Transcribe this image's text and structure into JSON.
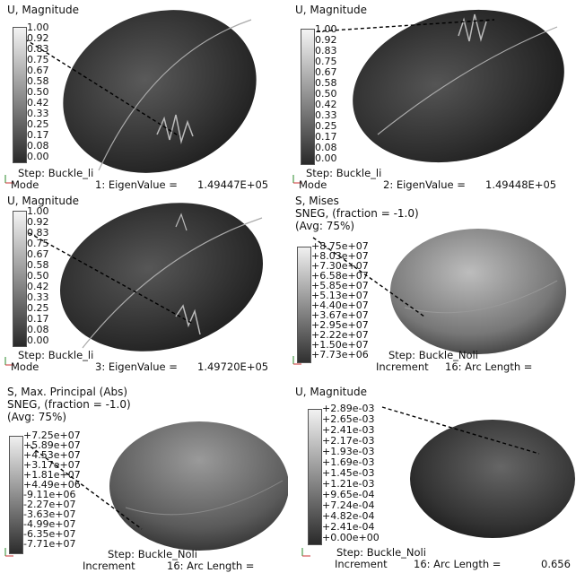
{
  "panels": [
    {
      "header": [
        "U, Magnitude"
      ],
      "ticks": [
        "1.00",
        "0.92",
        "0.83",
        "0.75",
        "0.67",
        "0.58",
        "0.50",
        "0.42",
        "0.33",
        "0.25",
        "0.17",
        "0.08",
        "0.00"
      ],
      "step": "Step: Buckle_li",
      "mode_label": "Mode",
      "mode_number": "1: EigenValue =",
      "mode_value": "1.49447E+05"
    },
    {
      "header": [
        "U, Magnitude"
      ],
      "ticks": [
        "1.00",
        "0.92",
        "0.83",
        "0.75",
        "0.67",
        "0.58",
        "0.50",
        "0.42",
        "0.33",
        "0.25",
        "0.17",
        "0.08",
        "0.00"
      ],
      "step": "Step: Buckle_li",
      "mode_label": "Mode",
      "mode_number": "2: EigenValue =",
      "mode_value": "1.49448E+05"
    },
    {
      "header": [
        "U, Magnitude"
      ],
      "ticks": [
        "1.00",
        "0.92",
        "0.83",
        "0.75",
        "0.67",
        "0.58",
        "0.50",
        "0.42",
        "0.33",
        "0.25",
        "0.17",
        "0.08",
        "0.00"
      ],
      "step": "Step: Buckle_li",
      "mode_label": "Mode",
      "mode_number": "3: EigenValue =",
      "mode_value": "1.49720E+05"
    },
    {
      "header": [
        "S, Mises",
        "SNEG, (fraction = -1.0)",
        "(Avg: 75%)"
      ],
      "ticks": [
        "+8.75e+07",
        "+8.03e+07",
        "+7.30e+07",
        "+6.58e+07",
        "+5.85e+07",
        "+5.13e+07",
        "+4.40e+07",
        "+3.67e+07",
        "+2.95e+07",
        "+2.22e+07",
        "+1.50e+07",
        "+7.73e+06"
      ],
      "step": "Step: Buckle_Noli",
      "increment_label": "Increment",
      "increment_value": "16: Arc Length ="
    },
    {
      "header": [
        "S, Max. Principal (Abs)",
        "SNEG, (fraction = -1.0)",
        "(Avg: 75%)"
      ],
      "ticks": [
        "+7.25e+07",
        "+5.89e+07",
        "+4.53e+07",
        "+3.17e+07",
        "+1.81e+07",
        "+4.49e+06",
        "-9.11e+06",
        "-2.27e+07",
        "-3.63e+07",
        "-4.99e+07",
        "-6.35e+07",
        "-7.71e+07"
      ],
      "step": "Step: Buckle_Noli",
      "increment_label": "Increment",
      "increment_value": "16: Arc Length ="
    },
    {
      "header": [
        "U, Magnitude"
      ],
      "ticks": [
        "+2.89e-03",
        "+2.65e-03",
        "+2.41e-03",
        "+2.17e-03",
        "+1.93e-03",
        "+1.69e-03",
        "+1.45e-03",
        "+1.21e-03",
        "+9.65e-04",
        "+7.24e-04",
        "+4.82e-04",
        "+2.41e-04",
        "+0.00e+00"
      ],
      "step": "Step: Buckle_Noli",
      "increment_label": "Increment",
      "increment_value": "16: Arc Length =",
      "arc_value": "0.656"
    }
  ]
}
